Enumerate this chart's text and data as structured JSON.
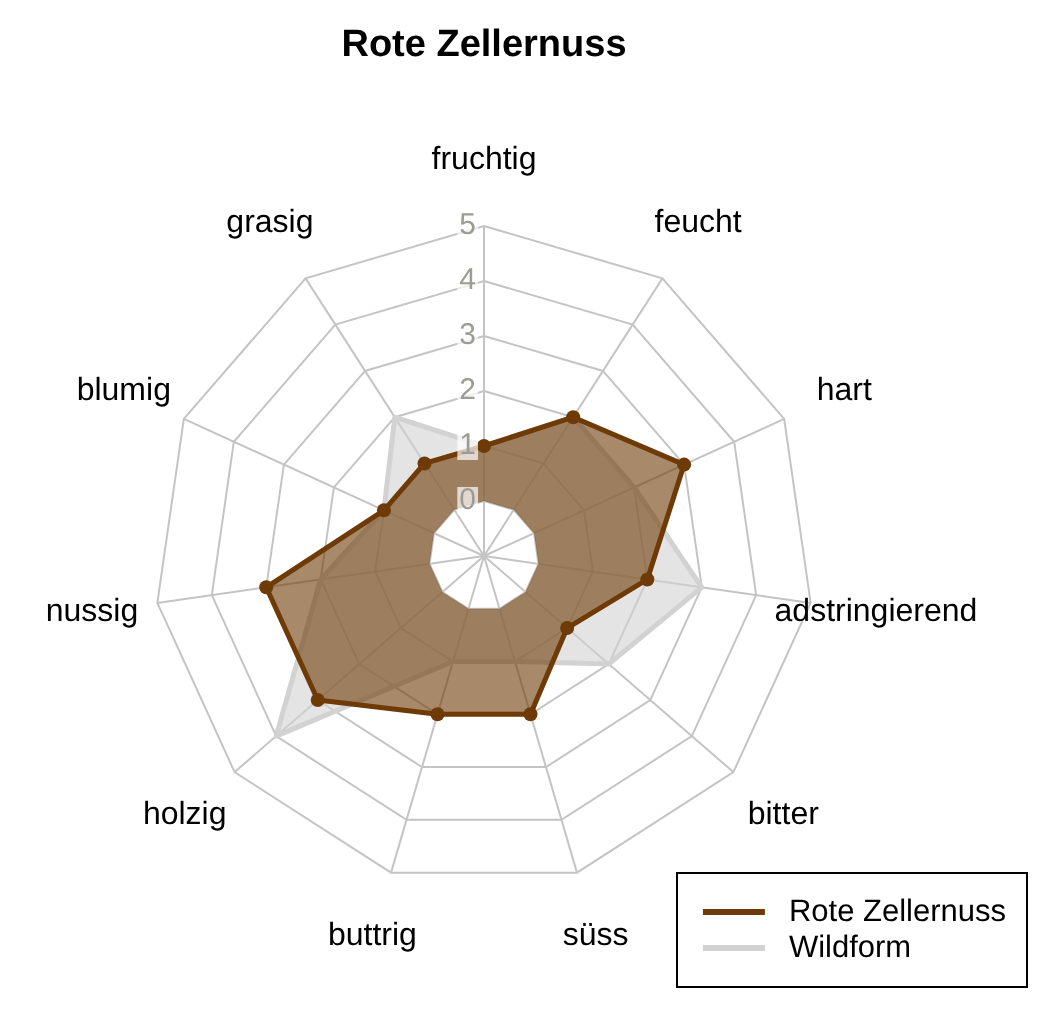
{
  "chart_data": {
    "type": "radar",
    "title": "Rote Zellernuss",
    "categories": [
      "fruchtig",
      "feucht",
      "hart",
      "adstringierend",
      "bitter",
      "süss",
      "buttrig",
      "holzig",
      "nussig",
      "blumig",
      "grasig"
    ],
    "series": [
      {
        "name": "Rote Zellernuss",
        "color": "#6e3a06",
        "marker": "circle",
        "values": [
          1,
          2,
          3,
          2,
          1,
          2,
          2,
          3,
          3,
          1,
          1
        ]
      },
      {
        "name": "Wildform",
        "color": "#d2d2d2",
        "marker": "none",
        "values": [
          1,
          2,
          2,
          3,
          2,
          1,
          1,
          4,
          2,
          1,
          2
        ]
      }
    ],
    "ylim": [
      -1,
      5
    ],
    "yticks": [
      0,
      1,
      2,
      3,
      4,
      5
    ],
    "grid": true,
    "legend": "bottom right"
  }
}
